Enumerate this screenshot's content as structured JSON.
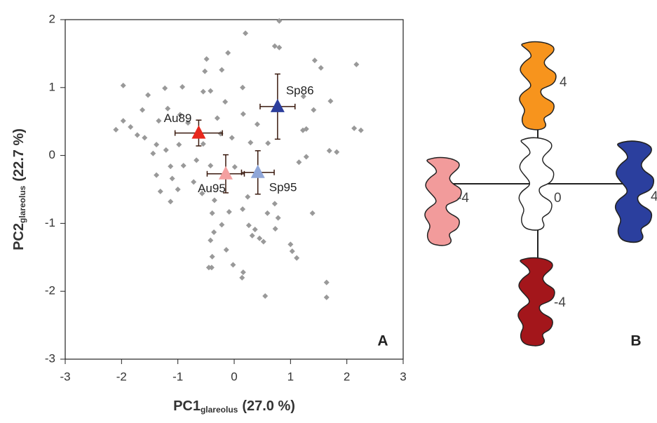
{
  "chart_data": {
    "type": "scatter",
    "x_label": {
      "main": "PC1",
      "sub": "glareolus",
      "rest": "(27.0 %)"
    },
    "y_label": {
      "main": "PC2",
      "sub": "glareolus",
      "rest": "(22.7 %)"
    },
    "panel_label": "A",
    "xlim": [
      -3,
      3
    ],
    "xticks": [
      -3,
      -2,
      -1,
      0,
      1,
      2,
      3
    ],
    "ylim": [
      -3,
      2
    ],
    "yticks": [
      -3,
      -2,
      -1,
      0,
      1,
      2
    ],
    "points": {
      "color": "#999999",
      "x": [
        0.8,
        0.2,
        0.72,
        0.8,
        -0.11,
        -0.49,
        1.43,
        1.54,
        2.17,
        -0.52,
        -0.22,
        -1.97,
        -1.23,
        -0.92,
        -0.55,
        -0.42,
        0.15,
        -1.53,
        1.23,
        -1.63,
        -1.18,
        -0.96,
        -0.16,
        1.41,
        1.71,
        -1.97,
        -2.1,
        -1.84,
        -1.34,
        -0.82,
        -0.3,
        0.16,
        0.41,
        1.22,
        1.28,
        2.13,
        2.25,
        -1.72,
        -1.59,
        -1.38,
        -0.98,
        -1.44,
        -1.21,
        -0.55,
        -0.24,
        -0.04,
        0.29,
        0.6,
        1.69,
        1.82,
        -1.13,
        -0.9,
        -0.67,
        -0.42,
        0.01,
        1.15,
        1.28,
        -1.38,
        -1.1,
        -0.72,
        -1.0,
        -1.31,
        -1.13,
        -0.57,
        -0.35,
        0.24,
        0.72,
        -0.09,
        -0.39,
        0.15,
        0.59,
        1.39,
        -0.22,
        0.78,
        -0.36,
        0.26,
        0.37,
        0.73,
        1.0,
        -0.42,
        0.32,
        0.45,
        0.52,
        -0.14,
        1.03,
        1.11,
        -0.39,
        -0.4,
        -0.02,
        0.16,
        -0.45,
        0.14,
        1.64,
        0.55,
        1.64
      ],
      "y": [
        1.98,
        1.8,
        1.61,
        1.59,
        1.51,
        1.42,
        1.4,
        1.29,
        1.34,
        1.24,
        1.26,
        1.03,
        0.99,
        1.01,
        0.94,
        0.95,
        1.0,
        0.89,
        0.87,
        0.67,
        0.69,
        0.6,
        0.79,
        0.67,
        0.8,
        0.51,
        0.38,
        0.42,
        0.51,
        0.48,
        0.55,
        0.61,
        0.46,
        0.37,
        0.39,
        0.4,
        0.37,
        0.3,
        0.26,
        0.16,
        0.16,
        0.03,
        0.08,
        0.17,
        0.32,
        0.26,
        0.19,
        0.18,
        0.07,
        0.05,
        -0.16,
        -0.15,
        -0.07,
        -0.15,
        -0.17,
        -0.1,
        -0.02,
        -0.29,
        -0.34,
        -0.39,
        -0.5,
        -0.53,
        -0.68,
        -0.56,
        -0.66,
        -0.61,
        -0.71,
        -0.83,
        -0.85,
        -0.79,
        -0.85,
        -0.85,
        -1.02,
        -0.92,
        -1.13,
        -1.03,
        -1.09,
        -1.08,
        -1.31,
        -1.25,
        -1.18,
        -1.22,
        -1.27,
        -1.39,
        -1.41,
        -1.51,
        -1.49,
        -1.65,
        -1.61,
        -1.72,
        -1.65,
        -1.8,
        -1.87,
        -2.07,
        -2.09
      ]
    },
    "series": [
      {
        "name": "Au89",
        "color": "#e8271c",
        "x": -0.63,
        "y": 0.33,
        "xerr": 0.42,
        "yerr": 0.19
      },
      {
        "name": "Sp86",
        "color": "#2c3e9c",
        "x": 0.77,
        "y": 0.72,
        "xerr": 0.31,
        "yerr": 0.48
      },
      {
        "name": "Au95",
        "color": "#f4a0a0",
        "x": -0.15,
        "y": -0.27,
        "xerr": 0.33,
        "yerr": 0.28
      },
      {
        "name": "Sp95",
        "color": "#8fa6d8",
        "x": 0.42,
        "y": -0.25,
        "xerr": 0.29,
        "yerr": 0.32
      }
    ]
  },
  "diagram": {
    "panel_label": "B",
    "top": "4",
    "left": "-4",
    "center": "0",
    "right": "4",
    "bottom": "-4"
  }
}
